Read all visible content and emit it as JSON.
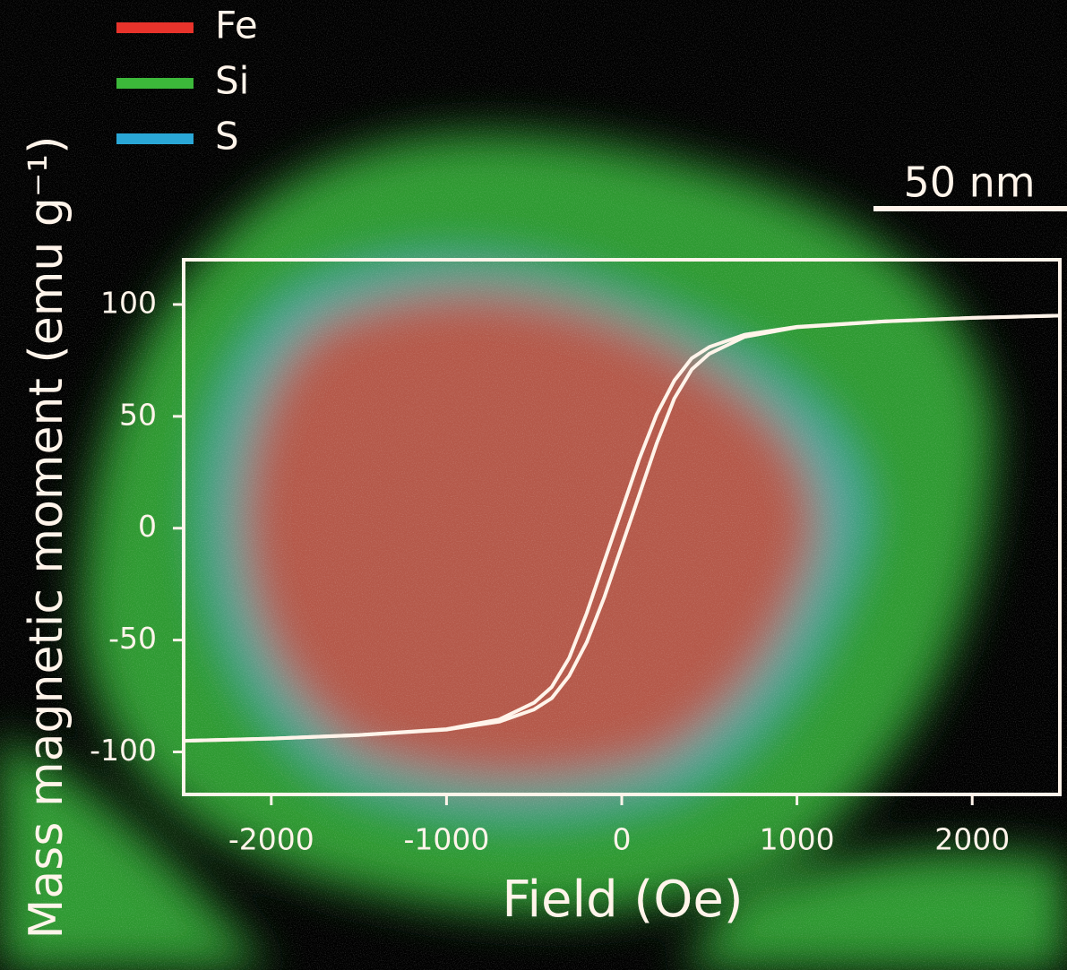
{
  "image": {
    "legend": [
      {
        "name": "Fe",
        "color": "#e8332b"
      },
      {
        "name": "Si",
        "color": "#3cb83a"
      },
      {
        "name": "S",
        "color": "#2aa7d6"
      }
    ],
    "scale_bar": "50 nm"
  },
  "chart_data": {
    "type": "line",
    "x_label": "Field (Oe)",
    "y_label": "Mass magnetic moment (emu g⁻¹)",
    "x": [
      -2500,
      -2000,
      -1500,
      -1000,
      -700,
      -500,
      -400,
      -300,
      -200,
      -100,
      0,
      100,
      200,
      300,
      400,
      500,
      700,
      1000,
      1500,
      2000,
      2500
    ],
    "series": [
      {
        "color": "#fff4ea",
        "values": [
          -95,
          -94,
          -92.5,
          -90,
          -86.5,
          -81,
          -76,
          -66,
          -51,
          -31,
          -8,
          15,
          38,
          58,
          71,
          78,
          85.5,
          89.8,
          92.4,
          94,
          95
        ]
      },
      {
        "color": "#fff4ea",
        "values": [
          -95,
          -94,
          -92.4,
          -89.8,
          -85.5,
          -78,
          -71,
          -58,
          -38,
          -15,
          8,
          31,
          51,
          66,
          76,
          81,
          86.5,
          90,
          92.5,
          94,
          95
        ]
      }
    ],
    "xlim": [
      -2500,
      2500
    ],
    "ylim": [
      -119,
      120
    ],
    "xticks": [
      -2000,
      -1000,
      0,
      1000,
      2000
    ],
    "yticks": [
      -100,
      -50,
      0,
      50,
      100
    ]
  }
}
